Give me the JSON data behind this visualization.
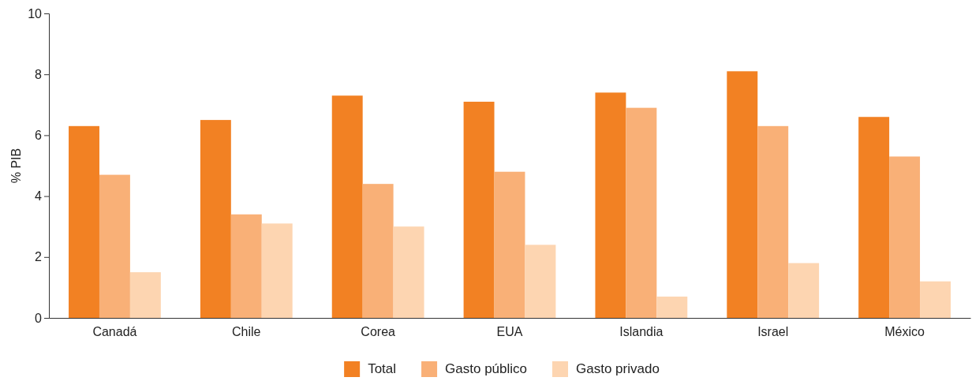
{
  "chart_data": {
    "type": "bar",
    "ylabel": "% PIB",
    "categories": [
      "Canadá",
      "Chile",
      "Corea",
      "EUA",
      "Islandia",
      "Israel",
      "México"
    ],
    "series": [
      {
        "name": "Total",
        "color": "#f28123",
        "values": [
          6.3,
          6.5,
          7.3,
          7.1,
          7.4,
          8.1,
          6.6
        ]
      },
      {
        "name": "Gasto público",
        "color": "#f9b077",
        "values": [
          4.7,
          3.4,
          4.4,
          4.8,
          6.9,
          6.3,
          5.3
        ]
      },
      {
        "name": "Gasto privado",
        "color": "#fdd5b1",
        "values": [
          1.5,
          3.1,
          3.0,
          2.4,
          0.7,
          1.8,
          1.2
        ]
      }
    ],
    "ylim": [
      0,
      10
    ],
    "yticks": [
      0,
      2,
      4,
      6,
      8,
      10
    ],
    "grid": false,
    "legend": "bottom"
  }
}
